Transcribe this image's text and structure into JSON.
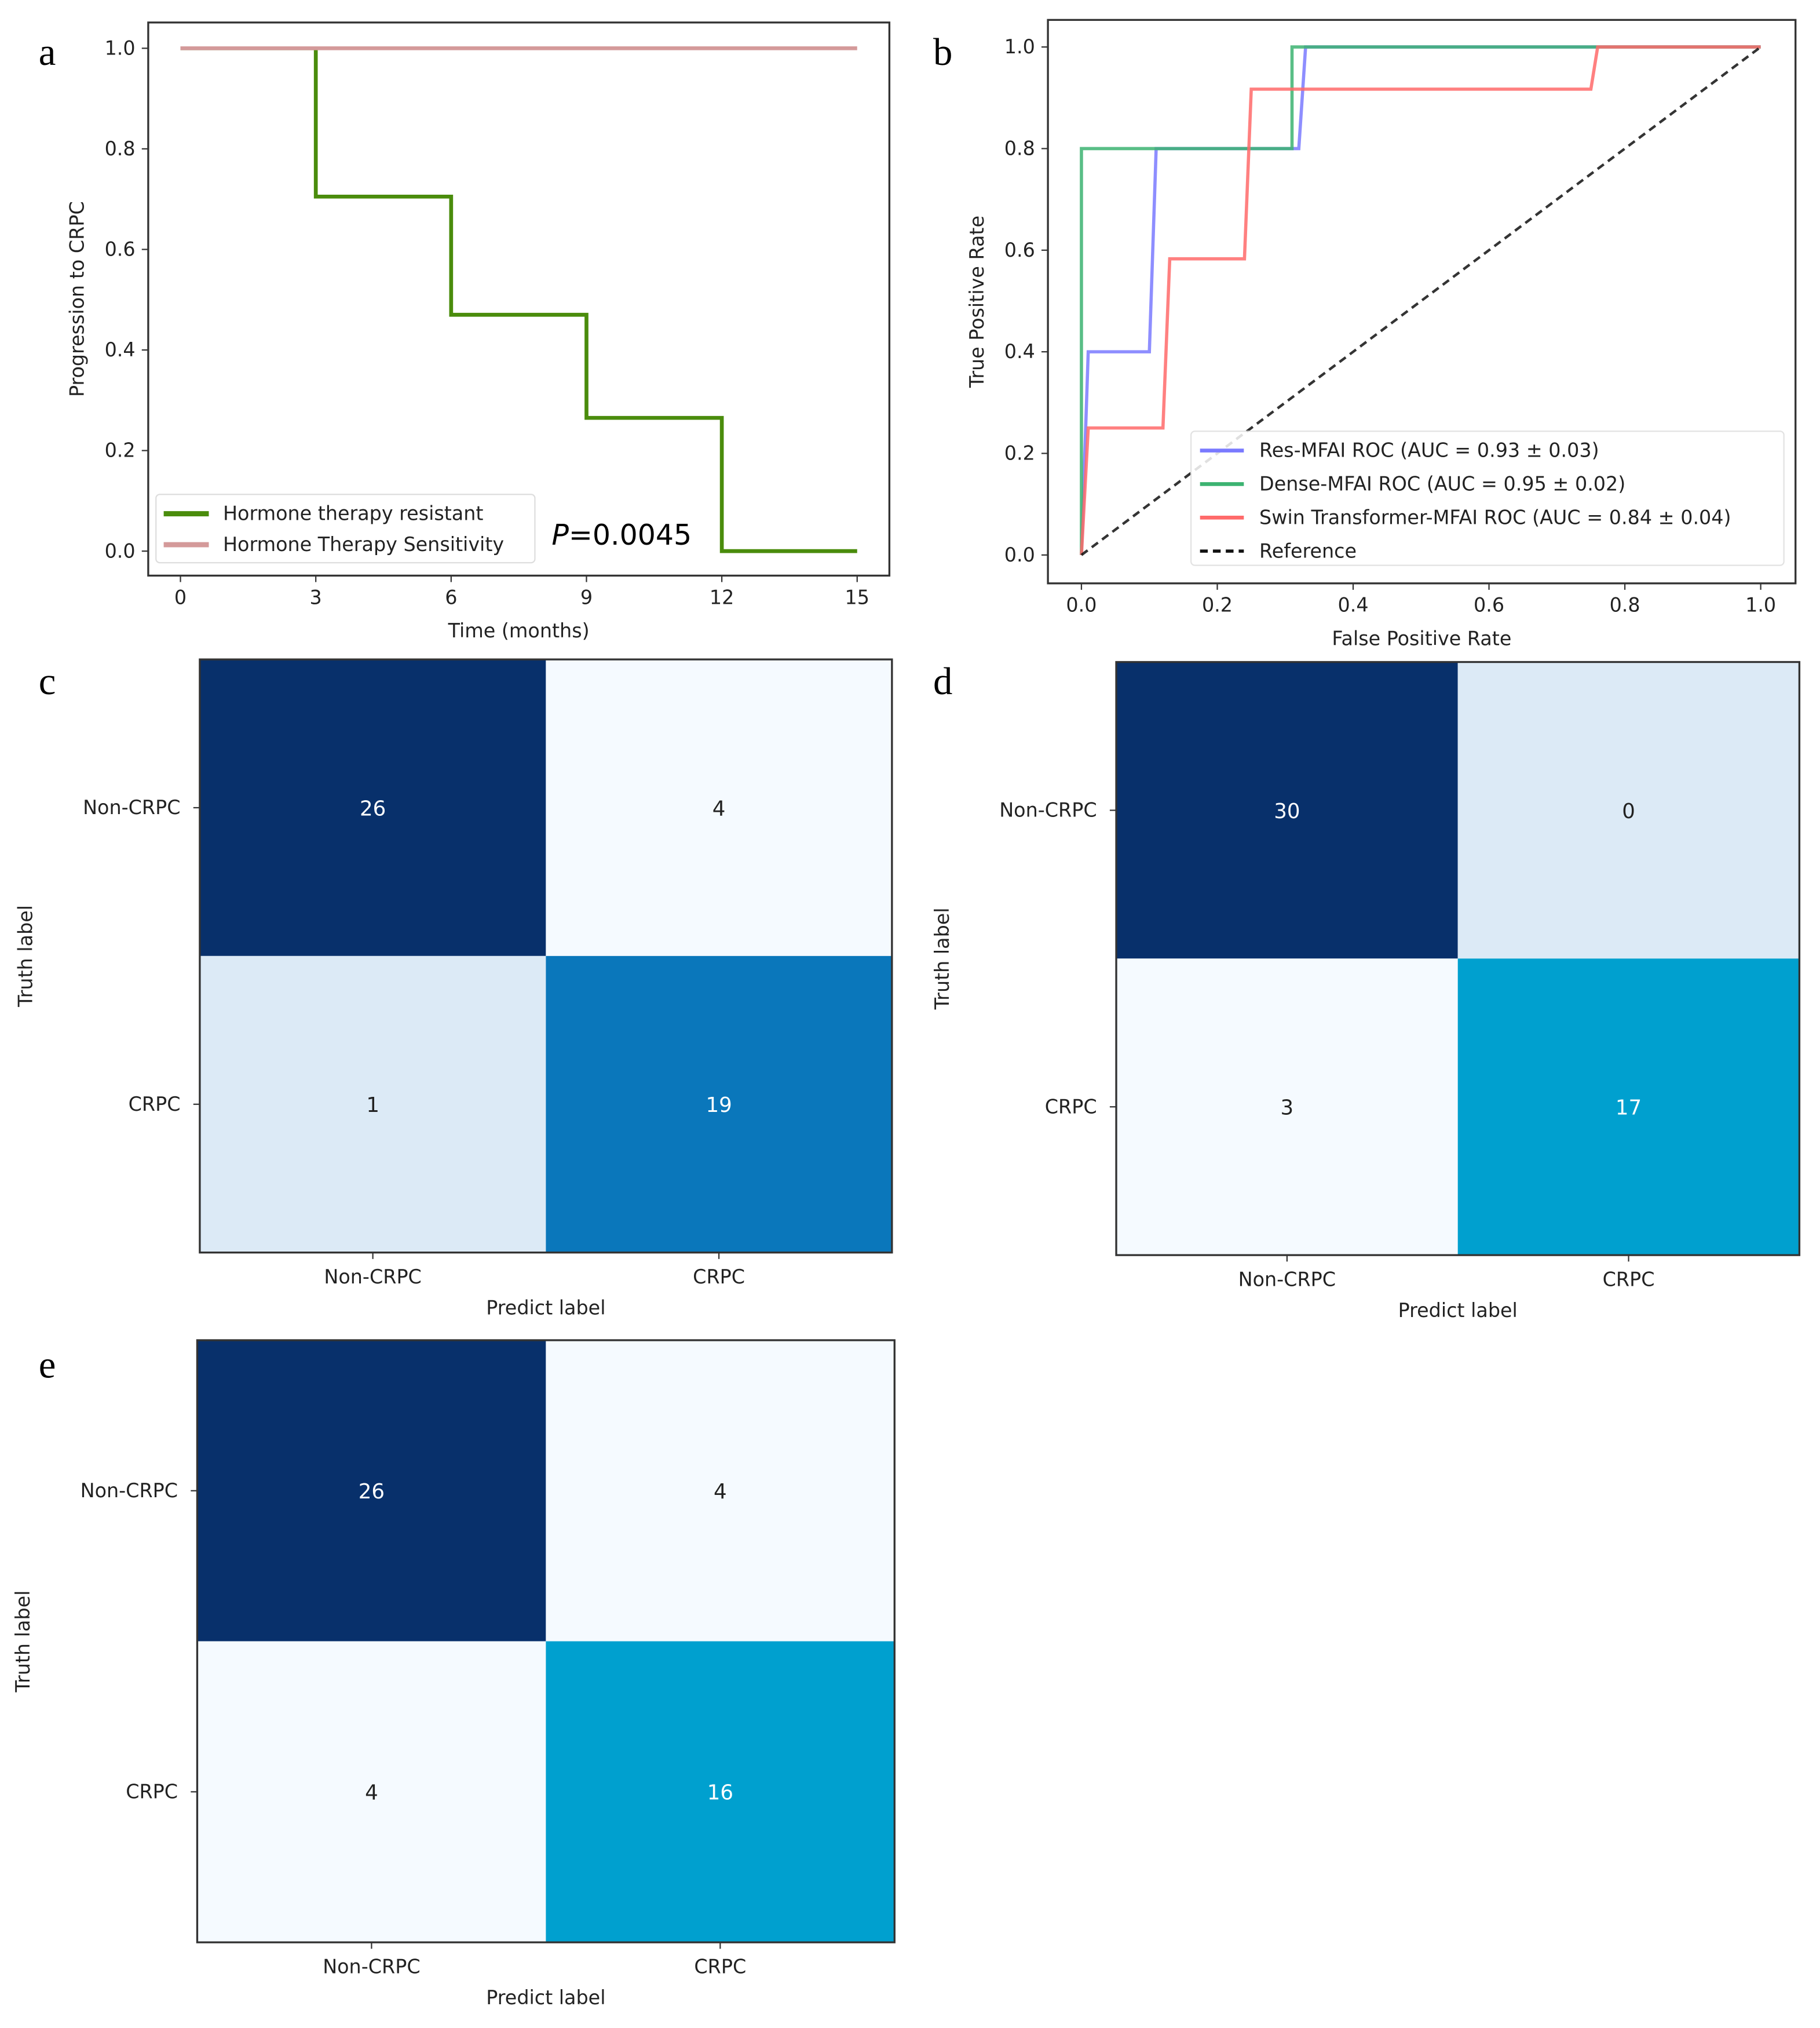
{
  "chart_data": [
    {
      "panel": "a",
      "type": "line",
      "title": "",
      "xlabel": "Time (months)",
      "ylabel": "Progression to CRPC",
      "xlim": [
        0,
        15
      ],
      "ylim": [
        0,
        1
      ],
      "xticks": [
        "0",
        "3",
        "6",
        "9",
        "12",
        "15"
      ],
      "yticks": [
        "0.0",
        "0.2",
        "0.4",
        "0.6",
        "0.8",
        "1.0"
      ],
      "annotation_prefix": "P",
      "annotation": "=0.0045",
      "legend_position": "lower-left",
      "series": [
        {
          "name": "Hormone therapy resistant",
          "color": "#4a8c0c",
          "step": true,
          "x": [
            0,
            3,
            6,
            9,
            12,
            15
          ],
          "y": [
            1.0,
            0.705,
            0.47,
            0.265,
            0.0,
            0.0
          ]
        },
        {
          "name": "Hormone Therapy Sensitivity",
          "color": "#d49a9a",
          "step": true,
          "x": [
            0,
            15
          ],
          "y": [
            1.0,
            1.0
          ]
        }
      ]
    },
    {
      "panel": "b",
      "type": "line",
      "xlabel": "False Positive Rate",
      "ylabel": "True Positive Rate",
      "xlim": [
        0,
        1
      ],
      "ylim": [
        0,
        1
      ],
      "xticks": [
        "0.0",
        "0.2",
        "0.4",
        "0.6",
        "0.8",
        "1.0"
      ],
      "yticks": [
        "0.0",
        "0.2",
        "0.4",
        "0.6",
        "0.8",
        "1.0"
      ],
      "legend_position": "lower-right",
      "series": [
        {
          "name": "Res-MFAI ROC (AUC = 0.93 ± 0.03)",
          "color": "#7a7aff",
          "x": [
            0,
            0.01,
            0.1,
            0.11,
            0.32,
            0.33,
            1
          ],
          "y": [
            0,
            0.4,
            0.4,
            0.8,
            0.8,
            1,
            1
          ]
        },
        {
          "name": "Dense-MFAI ROC (AUC = 0.95 ± 0.02)",
          "color": "#3cb371",
          "x": [
            0,
            0,
            0.31,
            0.31,
            1
          ],
          "y": [
            0,
            0.8,
            0.8,
            1,
            1
          ]
        },
        {
          "name": "Swin Transformer-MFAI ROC (AUC = 0.84 ± 0.04)",
          "color": "#ff6a6a",
          "x": [
            0,
            0.01,
            0.12,
            0.13,
            0.24,
            0.25,
            0.75,
            0.76,
            1
          ],
          "y": [
            0,
            0.25,
            0.25,
            0.583,
            0.583,
            0.917,
            0.917,
            1,
            1
          ]
        },
        {
          "name": "Reference",
          "color": "#111111",
          "dashed": true,
          "x": [
            0,
            1
          ],
          "y": [
            0,
            1
          ]
        }
      ]
    },
    {
      "panel": "c",
      "type": "heatmap",
      "xlabel": "Predict label",
      "ylabel": "Truth label",
      "xticks": [
        "Non-CRPC",
        "CRPC"
      ],
      "yticks": [
        "Non-CRPC",
        "CRPC"
      ],
      "values": [
        [
          26,
          4
        ],
        [
          1,
          19
        ]
      ],
      "colors": [
        [
          "#08306b",
          "#f5faff"
        ],
        [
          "#dceaf6",
          "#0a77bb"
        ]
      ]
    },
    {
      "panel": "d",
      "type": "heatmap",
      "xlabel": "Predict label",
      "ylabel": "Truth label",
      "xticks": [
        "Non-CRPC",
        "CRPC"
      ],
      "yticks": [
        "Non-CRPC",
        "CRPC"
      ],
      "values": [
        [
          30,
          0
        ],
        [
          3,
          17
        ]
      ],
      "colors": [
        [
          "#08306b",
          "#dceaf6"
        ],
        [
          "#f5faff",
          "#00a0cf"
        ]
      ]
    },
    {
      "panel": "e",
      "type": "heatmap",
      "xlabel": "Predict label",
      "ylabel": "Truth label",
      "xticks": [
        "Non-CRPC",
        "CRPC"
      ],
      "yticks": [
        "Non-CRPC",
        "CRPC"
      ],
      "values": [
        [
          26,
          4
        ],
        [
          4,
          16
        ]
      ],
      "colors": [
        [
          "#08306b",
          "#f5faff"
        ],
        [
          "#f5faff",
          "#00a0cf"
        ]
      ]
    }
  ]
}
